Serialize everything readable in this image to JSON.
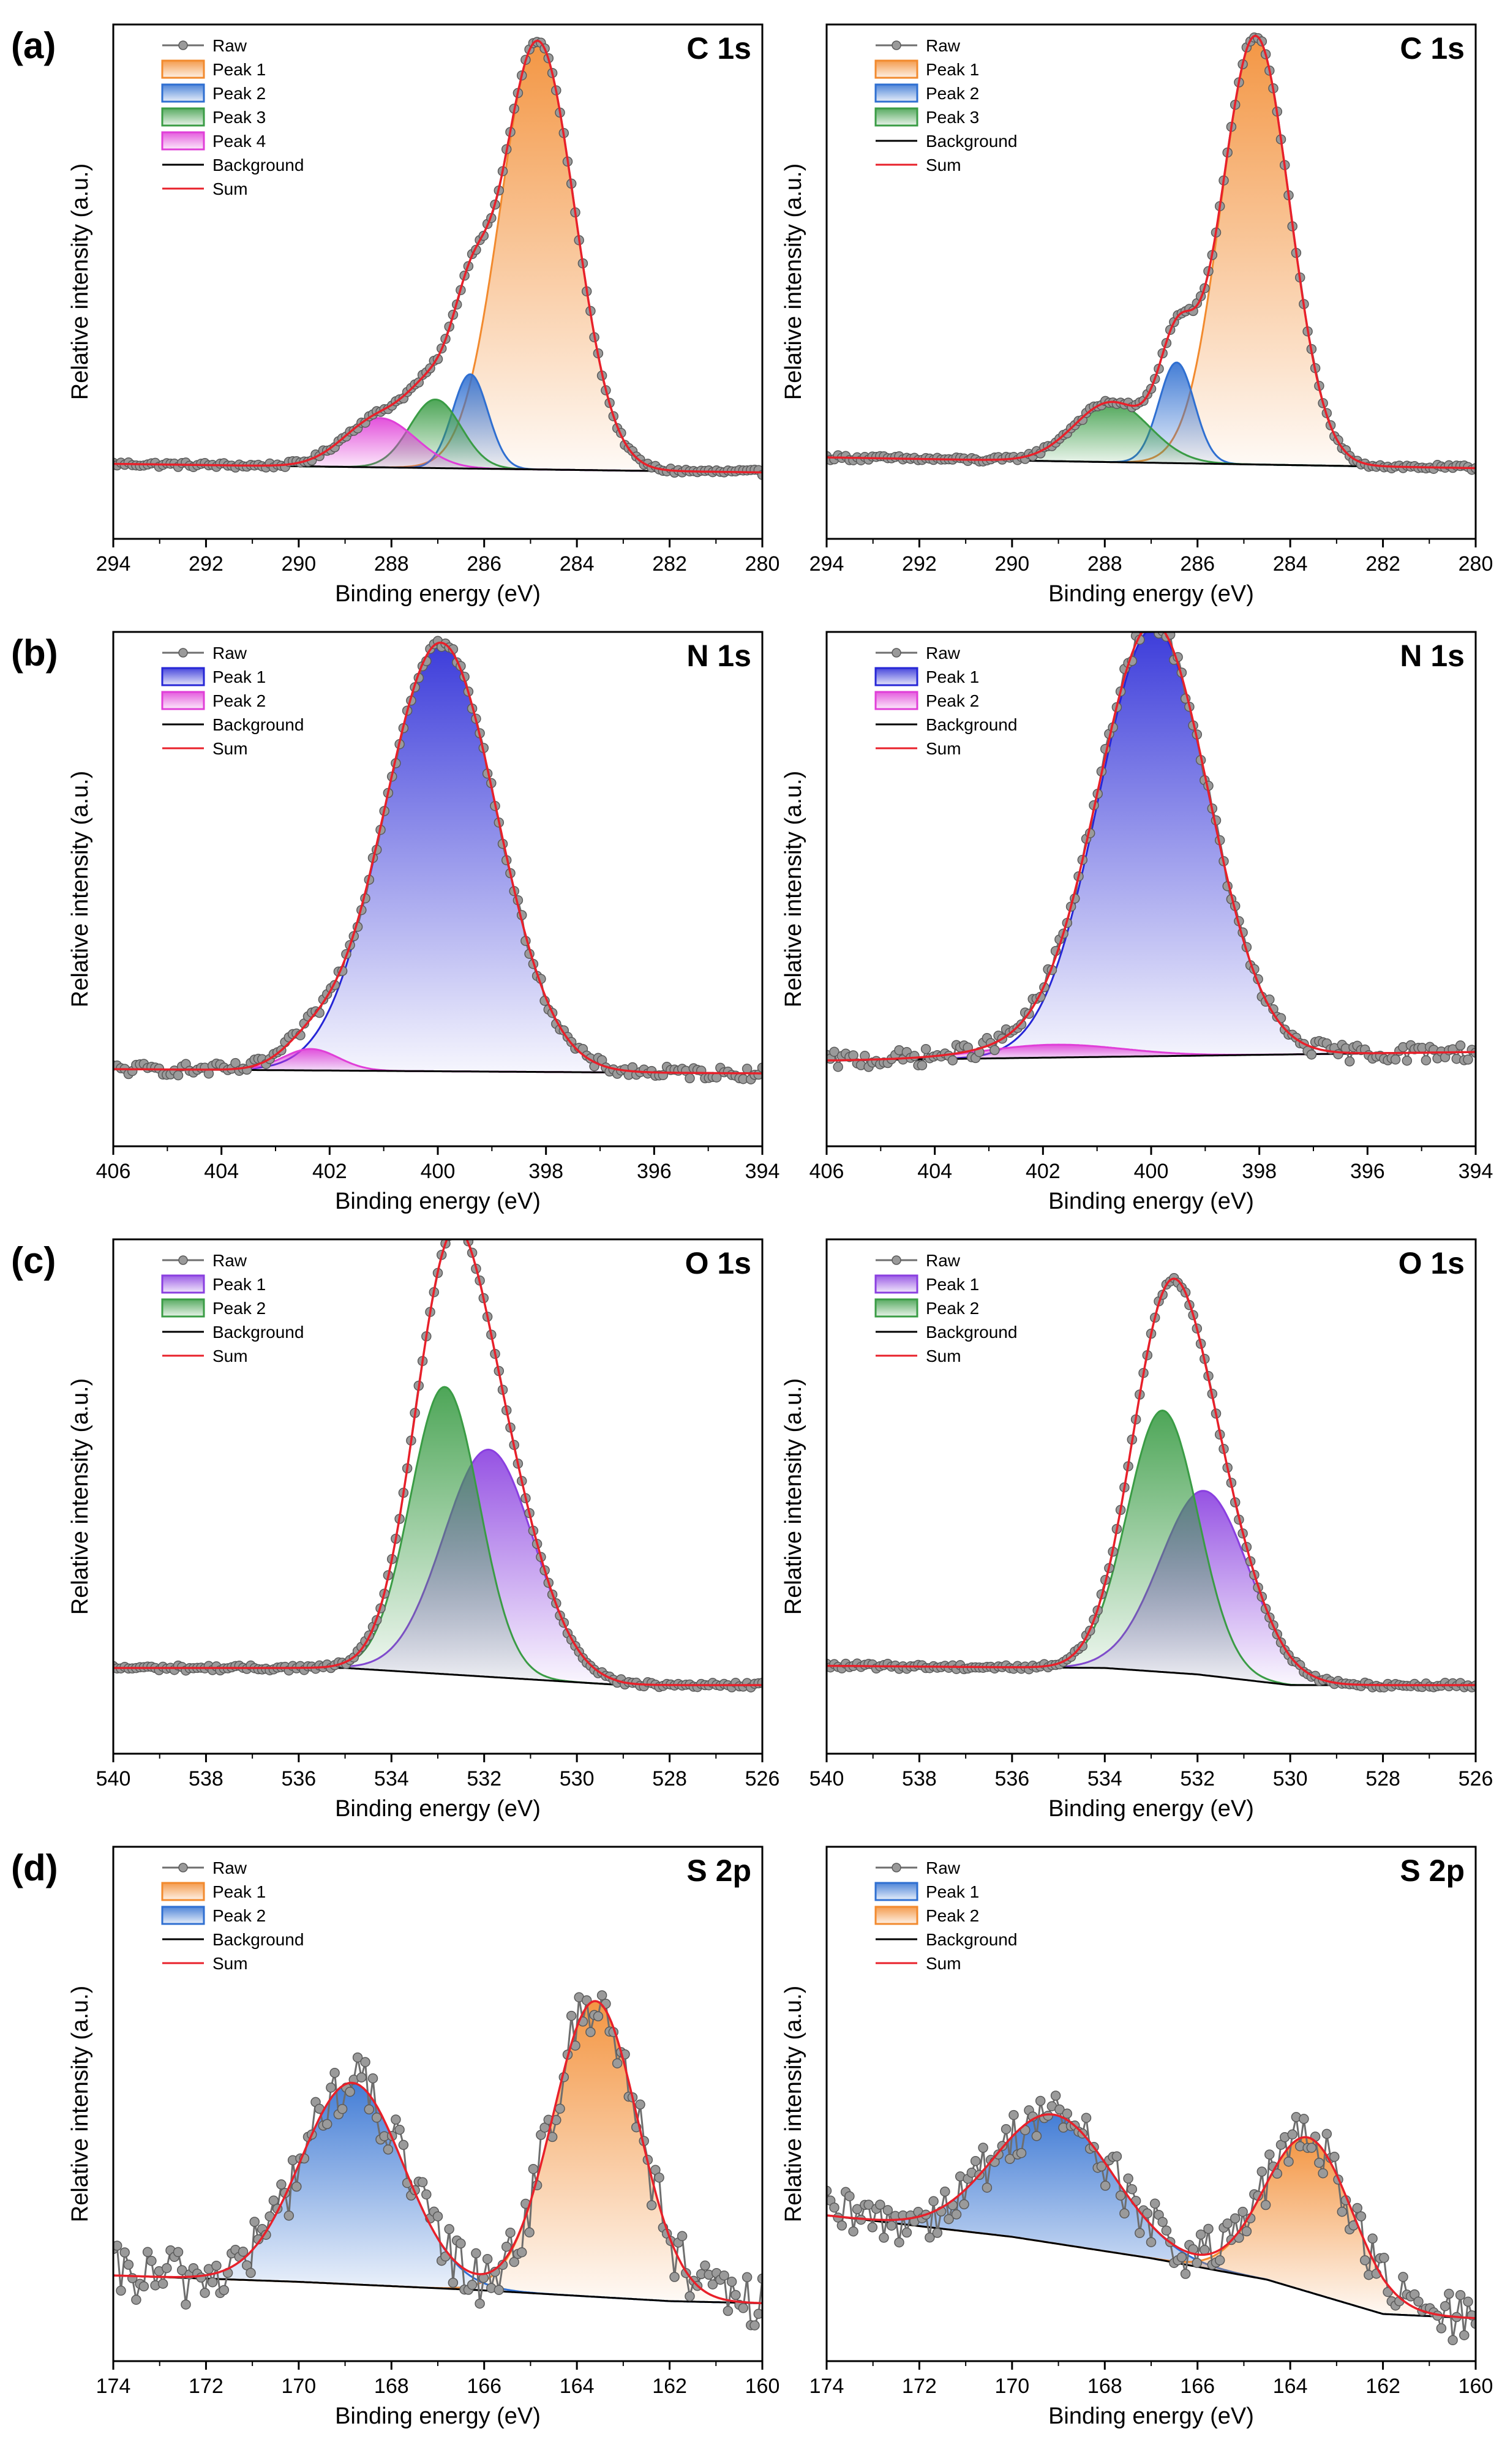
{
  "figure": {
    "panel_labels": [
      "(a)",
      "(b)",
      "(c)",
      "(d)"
    ]
  },
  "colors": {
    "raw": "#6e6e6e",
    "background": "#000000",
    "sum": "#e8202a",
    "peak_orange": "#f28a2e",
    "peak_blue": "#2f6fd1",
    "peak_green": "#3a9c45",
    "peak_magenta": "#e03fd8",
    "peak_nblue": "#2626d6",
    "peak_violet": "#8a3fe0"
  },
  "chart_data": [
    {
      "type": "line",
      "id": "a-left",
      "title": "C 1s",
      "xlabel": "Binding energy (eV)",
      "ylabel": "Relative intensity (a.u.)",
      "xlim": [
        294,
        280
      ],
      "ylim": [
        0,
        1.2
      ],
      "xticks": [
        294,
        292,
        290,
        288,
        286,
        284,
        282,
        280
      ],
      "legend": [
        "Raw",
        "Peak 1",
        "Peak 2",
        "Peak 3",
        "Peak 4",
        "Background",
        "Sum"
      ],
      "background": [
        [
          294,
          0.175
        ],
        [
          280,
          0.155
        ]
      ],
      "peaks": [
        {
          "name": "Peak 1",
          "center": 284.85,
          "height": 1.0,
          "fwhm": 1.9,
          "color": "peak_orange"
        },
        {
          "name": "Peak 2",
          "center": 286.3,
          "height": 0.22,
          "fwhm": 0.9,
          "color": "peak_blue"
        },
        {
          "name": "Peak 3",
          "center": 287.05,
          "height": 0.16,
          "fwhm": 1.3,
          "color": "peak_green"
        },
        {
          "name": "Peak 4",
          "center": 288.25,
          "height": 0.115,
          "fwhm": 1.8,
          "color": "peak_magenta"
        }
      ],
      "noise": 0.006
    },
    {
      "type": "line",
      "id": "a-right",
      "title": "C 1s",
      "xlabel": "Binding energy (eV)",
      "ylabel": "Relative intensity (a.u.)",
      "xlim": [
        294,
        280
      ],
      "ylim": [
        0,
        1.2
      ],
      "xticks": [
        294,
        292,
        290,
        288,
        286,
        284,
        282,
        280
      ],
      "legend": [
        "Raw",
        "Peak 1",
        "Peak 2",
        "Peak 3",
        "Background",
        "Sum"
      ],
      "background": [
        [
          294,
          0.19
        ],
        [
          280,
          0.165
        ]
      ],
      "peaks": [
        {
          "name": "Peak 1",
          "center": 284.75,
          "height": 1.0,
          "fwhm": 1.75,
          "color": "peak_orange"
        },
        {
          "name": "Peak 2",
          "center": 286.45,
          "height": 0.235,
          "fwhm": 0.9,
          "color": "peak_blue"
        },
        {
          "name": "Peak 3",
          "center": 287.85,
          "height": 0.14,
          "fwhm": 1.9,
          "color": "peak_green"
        }
      ],
      "noise": 0.006
    },
    {
      "type": "line",
      "id": "b-left",
      "title": "N 1s",
      "xlabel": "Binding energy (eV)",
      "ylabel": "Relative intensity (a.u.)",
      "xlim": [
        406,
        394
      ],
      "ylim": [
        0,
        1.2
      ],
      "xticks": [
        406,
        404,
        402,
        400,
        398,
        396,
        394
      ],
      "legend": [
        "Raw",
        "Peak 1",
        "Peak 2",
        "Background",
        "Sum"
      ],
      "background": [
        [
          406,
          0.18
        ],
        [
          394,
          0.17
        ]
      ],
      "peaks": [
        {
          "name": "Peak 1",
          "center": 399.95,
          "height": 1.0,
          "fwhm": 2.45,
          "color": "peak_nblue"
        },
        {
          "name": "Peak 2",
          "center": 402.35,
          "height": 0.05,
          "fwhm": 1.2,
          "color": "peak_magenta"
        }
      ],
      "noise": 0.014
    },
    {
      "type": "line",
      "id": "b-right",
      "title": "N 1s",
      "xlabel": "Binding energy (eV)",
      "ylabel": "Relative intensity (a.u.)",
      "xlim": [
        406,
        394
      ],
      "ylim": [
        0,
        1.2
      ],
      "xticks": [
        406,
        404,
        402,
        400,
        398,
        396,
        394
      ],
      "legend": [
        "Raw",
        "Peak 1",
        "Peak 2",
        "Background",
        "Sum"
      ],
      "background": [
        [
          406,
          0.2
        ],
        [
          394,
          0.22
        ]
      ],
      "peaks": [
        {
          "name": "Peak 1",
          "center": 399.95,
          "height": 1.0,
          "fwhm": 2.4,
          "color": "peak_nblue"
        },
        {
          "name": "Peak 2",
          "center": 401.8,
          "height": 0.03,
          "fwhm": 3.0,
          "color": "peak_magenta"
        }
      ],
      "noise": 0.02
    },
    {
      "type": "line",
      "id": "c-left",
      "title": "O 1s",
      "xlabel": "Binding energy (eV)",
      "ylabel": "Relative intensity (a.u.)",
      "xlim": [
        540,
        526
      ],
      "ylim": [
        0,
        1.2
      ],
      "xticks": [
        540,
        538,
        536,
        534,
        532,
        530,
        528,
        526
      ],
      "legend": [
        "Raw",
        "Peak 1",
        "Peak 2",
        "Background",
        "Sum"
      ],
      "background": [
        [
          540,
          0.2
        ],
        [
          535,
          0.2
        ],
        [
          532,
          0.18
        ],
        [
          529,
          0.16
        ],
        [
          526,
          0.16
        ]
      ],
      "peaks": [
        {
          "name": "Peak 1",
          "center": 531.9,
          "height": 0.53,
          "fwhm": 2.3,
          "color": "peak_violet"
        },
        {
          "name": "Peak 2",
          "center": 532.85,
          "height": 0.67,
          "fwhm": 1.75,
          "color": "peak_green"
        }
      ],
      "noise": 0.006
    },
    {
      "type": "line",
      "id": "c-right",
      "title": "O 1s",
      "xlabel": "Binding energy (eV)",
      "ylabel": "Relative intensity (a.u.)",
      "xlim": [
        540,
        526
      ],
      "ylim": [
        0,
        1.2
      ],
      "xticks": [
        540,
        538,
        536,
        534,
        532,
        530,
        528,
        526
      ],
      "legend": [
        "Raw",
        "Peak 1",
        "Peak 2",
        "Background",
        "Sum"
      ],
      "background": [
        [
          540,
          0.205
        ],
        [
          534,
          0.2
        ],
        [
          532,
          0.185
        ],
        [
          530,
          0.16
        ],
        [
          526,
          0.16
        ]
      ],
      "peaks": [
        {
          "name": "Peak 1",
          "center": 531.85,
          "height": 0.43,
          "fwhm": 2.25,
          "color": "peak_violet"
        },
        {
          "name": "Peak 2",
          "center": 532.75,
          "height": 0.61,
          "fwhm": 1.8,
          "color": "peak_green"
        }
      ],
      "noise": 0.006
    },
    {
      "type": "line",
      "id": "d-left",
      "title": "S 2p",
      "xlabel": "Binding energy (eV)",
      "ylabel": "Relative intensity (a.u.)",
      "xlim": [
        174,
        160
      ],
      "ylim": [
        0,
        1.2
      ],
      "xticks": [
        174,
        172,
        170,
        168,
        166,
        164,
        162,
        160
      ],
      "legend": [
        "Raw",
        "Peak 1",
        "Peak 2",
        "Background",
        "Sum"
      ],
      "background": [
        [
          174,
          0.2
        ],
        [
          170,
          0.185
        ],
        [
          166,
          0.165
        ],
        [
          162,
          0.14
        ],
        [
          160,
          0.135
        ]
      ],
      "peaks": [
        {
          "name": "Peak 1",
          "center": 163.6,
          "height": 0.69,
          "fwhm": 2.15,
          "color": "peak_orange"
        },
        {
          "name": "Peak 2",
          "center": 168.85,
          "height": 0.47,
          "fwhm": 2.6,
          "color": "peak_blue"
        }
      ],
      "noise": 0.07
    },
    {
      "type": "line",
      "id": "d-right",
      "title": "S 2p",
      "xlabel": "Binding energy (eV)",
      "ylabel": "Relative intensity (a.u.)",
      "xlim": [
        174,
        160
      ],
      "ylim": [
        0,
        1.2
      ],
      "xticks": [
        174,
        172,
        170,
        168,
        166,
        164,
        162,
        160
      ],
      "legend": [
        "Raw",
        "Peak 1",
        "Peak 2",
        "Background",
        "Sum"
      ],
      "background": [
        [
          174,
          0.34
        ],
        [
          170,
          0.29
        ],
        [
          167,
          0.24
        ],
        [
          164.5,
          0.19
        ],
        [
          162,
          0.11
        ],
        [
          160,
          0.1
        ]
      ],
      "peaks": [
        {
          "name": "Peak 1",
          "center": 169.1,
          "height": 0.3,
          "fwhm": 3.0,
          "color": "peak_blue"
        },
        {
          "name": "Peak 2",
          "center": 163.6,
          "height": 0.36,
          "fwhm": 2.2,
          "color": "peak_orange"
        }
      ],
      "noise": 0.06
    }
  ]
}
